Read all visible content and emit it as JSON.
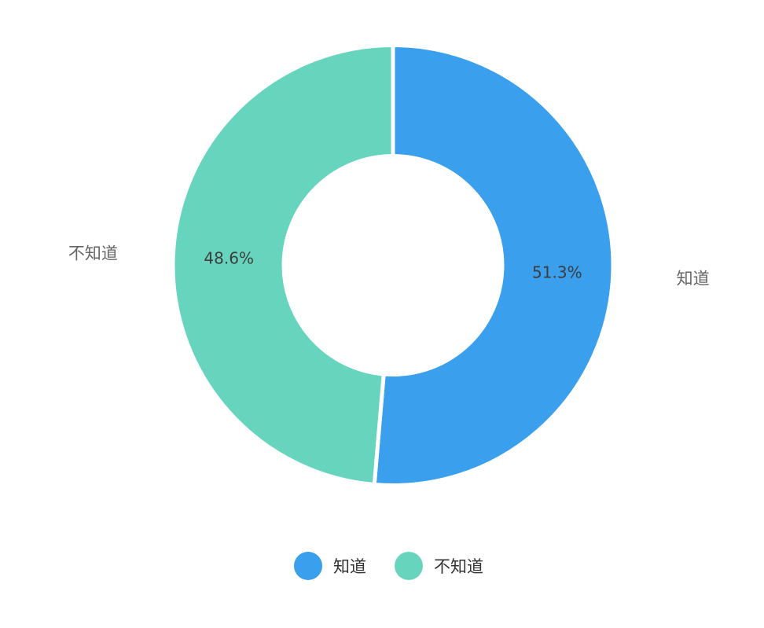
{
  "chart_data": {
    "type": "pie",
    "variant": "donut",
    "categories": [
      "知道",
      "不知道"
    ],
    "values": [
      51.3,
      48.6
    ],
    "data_labels": [
      "51.3%",
      "48.6%"
    ],
    "colors": [
      "#3a9fec",
      "#67d5bd"
    ],
    "legend": {
      "position": "bottom",
      "items": [
        "知道",
        "不知道"
      ]
    }
  }
}
